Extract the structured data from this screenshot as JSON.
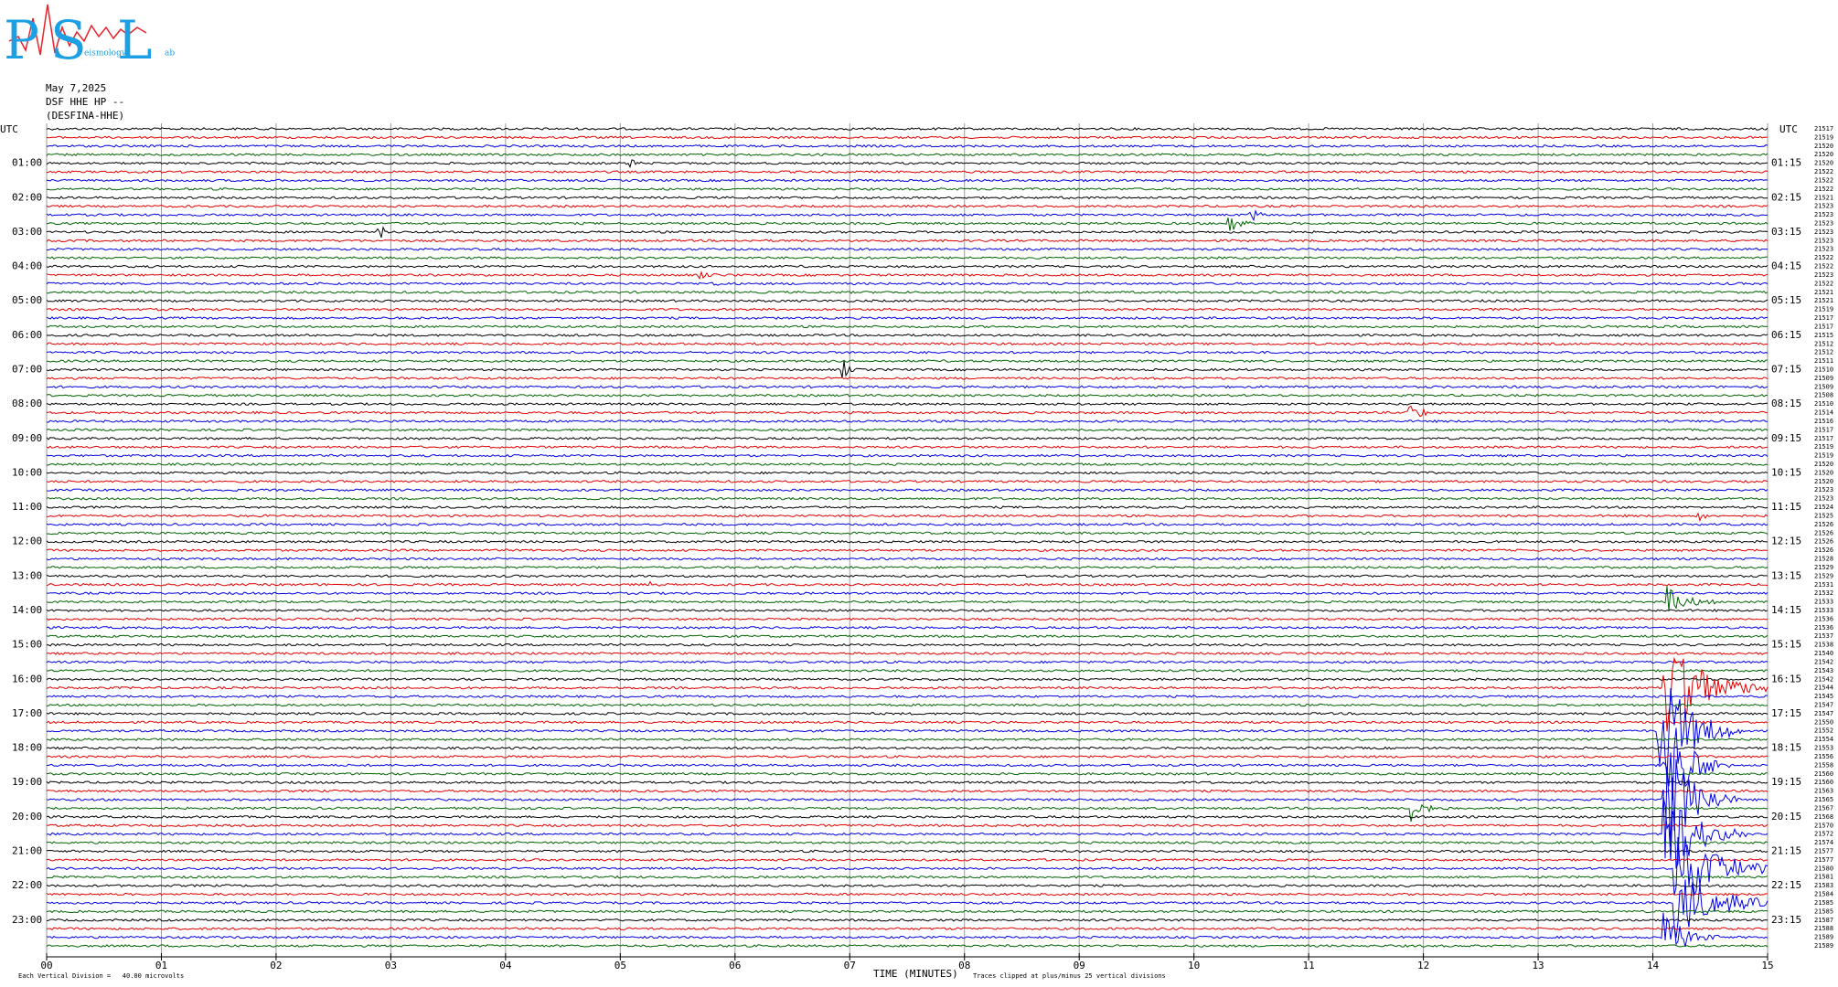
{
  "logo": {
    "letters": [
      "P",
      "S",
      "L"
    ],
    "caption": [
      "eismology",
      "ab"
    ]
  },
  "header": {
    "date": "May 7,2025",
    "station": "DSF HHE HP --",
    "name": "(DESFINA-HHE)"
  },
  "left_axis": {
    "title": "UTC",
    "labels": [
      "01:00",
      "02:00",
      "03:00",
      "04:00",
      "05:00",
      "06:00",
      "07:00",
      "08:00",
      "09:00",
      "10:00",
      "11:00",
      "12:00",
      "13:00",
      "14:00",
      "15:00",
      "16:00",
      "17:00",
      "18:00",
      "19:00",
      "20:00",
      "21:00",
      "22:00",
      "23:00"
    ]
  },
  "right_axis": {
    "title": "UTC",
    "labels": [
      "01:15",
      "02:15",
      "03:15",
      "04:15",
      "05:15",
      "06:15",
      "07:15",
      "08:15",
      "09:15",
      "10:15",
      "11:15",
      "12:15",
      "13:15",
      "14:15",
      "15:15",
      "16:15",
      "17:15",
      "18:15",
      "19:15",
      "20:15",
      "21:15",
      "22:15",
      "23:15"
    ]
  },
  "trace_counts": [
    21517,
    21519,
    21520,
    21520,
    21520,
    21522,
    21522,
    21522,
    21521,
    21523,
    21523,
    21523,
    21523,
    21523,
    21523,
    21522,
    21522,
    21523,
    21522,
    21521,
    21521,
    21519,
    21517,
    21517,
    21515,
    21512,
    21512,
    21511,
    21510,
    21509,
    21509,
    21508,
    21510,
    21514,
    21516,
    21517,
    21517,
    21519,
    21519,
    21520,
    21520,
    21520,
    21523,
    21523,
    21524,
    21525,
    21526,
    21526,
    21526,
    21526,
    21528,
    21529,
    21529,
    21531,
    21532,
    21533,
    21533,
    21536,
    21536,
    21537,
    21538,
    21540,
    21542,
    21543,
    21542,
    21544,
    21545,
    21547,
    21547,
    21550,
    21552,
    21554,
    21553,
    21556,
    21558,
    21560,
    21560,
    21563,
    21565,
    21567,
    21568,
    21570,
    21572,
    21574,
    21577,
    21577,
    21580,
    21581,
    21583,
    21584,
    21585,
    21585,
    21587,
    21588,
    21589,
    21589
  ],
  "x_axis": {
    "ticks": [
      "00",
      "01",
      "02",
      "03",
      "04",
      "05",
      "06",
      "07",
      "08",
      "09",
      "10",
      "11",
      "12",
      "13",
      "14",
      "15"
    ],
    "title": "TIME (MINUTES)"
  },
  "footer": {
    "scale": "Each Vertical Division =   40.00 microvolts",
    "clip": "Traces clipped at plus/minus 25 vertical divisions"
  }
}
